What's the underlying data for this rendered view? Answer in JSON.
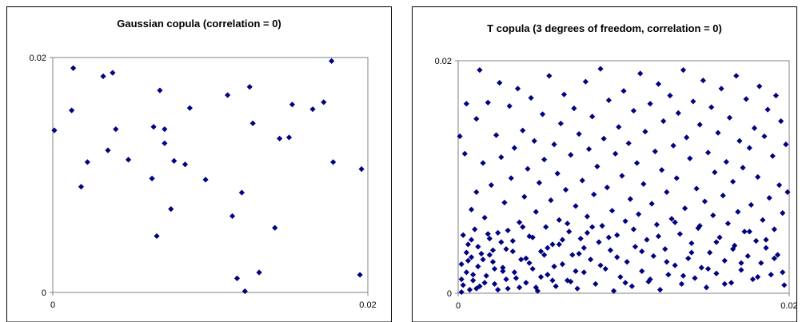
{
  "colors": {
    "marker": "#000080",
    "axis": "#808080",
    "frame": "#000000",
    "background": "#ffffff"
  },
  "chart_data": [
    {
      "type": "scatter",
      "title": "Gaussian copula (correlation = 0)",
      "xlabel": "",
      "ylabel": "",
      "xlim": [
        0,
        0.02
      ],
      "ylim": [
        0,
        0.02
      ],
      "x_ticks": [
        "0",
        "0.02"
      ],
      "y_ticks": [
        "0",
        "0.02"
      ],
      "grid": false,
      "points": [
        [
          0.0001,
          0.0138
        ],
        [
          0.0012,
          0.0155
        ],
        [
          0.0013,
          0.0191
        ],
        [
          0.0018,
          0.009
        ],
        [
          0.0022,
          0.0111
        ],
        [
          0.0032,
          0.0184
        ],
        [
          0.0035,
          0.0121
        ],
        [
          0.0038,
          0.0187
        ],
        [
          0.004,
          0.0139
        ],
        [
          0.0048,
          0.0113
        ],
        [
          0.0063,
          0.0097
        ],
        [
          0.0064,
          0.0141
        ],
        [
          0.0066,
          0.0048
        ],
        [
          0.0068,
          0.0172
        ],
        [
          0.0071,
          0.0139
        ],
        [
          0.0071,
          0.0127
        ],
        [
          0.0075,
          0.0071
        ],
        [
          0.0077,
          0.0112
        ],
        [
          0.0084,
          0.0109
        ],
        [
          0.0087,
          0.0157
        ],
        [
          0.0097,
          0.0096
        ],
        [
          0.0111,
          0.0168
        ],
        [
          0.0114,
          0.0065
        ],
        [
          0.0117,
          0.0012
        ],
        [
          0.012,
          0.0085
        ],
        [
          0.0122,
          0.0001
        ],
        [
          0.0125,
          0.0175
        ],
        [
          0.0127,
          0.0144
        ],
        [
          0.0131,
          0.0017
        ],
        [
          0.0141,
          0.0055
        ],
        [
          0.0144,
          0.0131
        ],
        [
          0.015,
          0.0132
        ],
        [
          0.0152,
          0.016
        ],
        [
          0.0165,
          0.0156
        ],
        [
          0.0172,
          0.0162
        ],
        [
          0.0177,
          0.0197
        ],
        [
          0.0178,
          0.0111
        ],
        [
          0.0195,
          0.0015
        ],
        [
          0.0196,
          0.0105
        ]
      ]
    },
    {
      "type": "scatter",
      "title": "T copula (3 degrees of freedom, correlation = 0)",
      "xlabel": "",
      "ylabel": "",
      "xlim": [
        0,
        0.02
      ],
      "ylim": [
        0,
        0.02
      ],
      "x_ticks": [
        "0",
        "0.02"
      ],
      "y_ticks": [
        "0",
        "0.02"
      ],
      "grid": false,
      "points": [
        [
          0.0001,
          0.0135
        ],
        [
          0.0002,
          0.0001
        ],
        [
          0.0002,
          0.0025
        ],
        [
          0.0003,
          0.0007
        ],
        [
          0.0004,
          0.012
        ],
        [
          0.0005,
          0.0163
        ],
        [
          0.0005,
          0.0018
        ],
        [
          0.0006,
          0.0042
        ],
        [
          0.0007,
          0.0003
        ],
        [
          0.0008,
          0.0072
        ],
        [
          0.0008,
          0.0031
        ],
        [
          0.0009,
          0.0011
        ],
        [
          0.001,
          0.0055
        ],
        [
          0.0011,
          0.015
        ],
        [
          0.0011,
          0.0087
        ],
        [
          0.0012,
          0.0023
        ],
        [
          0.0013,
          0.0192
        ],
        [
          0.0013,
          0.0006
        ],
        [
          0.0014,
          0.0034
        ],
        [
          0.0015,
          0.0112
        ],
        [
          0.0016,
          0.0065
        ],
        [
          0.0017,
          0.0015
        ],
        [
          0.0018,
          0.0164
        ],
        [
          0.0019,
          0.0047
        ],
        [
          0.002,
          0.0093
        ],
        [
          0.0021,
          0.0027
        ],
        [
          0.0022,
          0.0008
        ],
        [
          0.0023,
          0.0136
        ],
        [
          0.0024,
          0.0052
        ],
        [
          0.0025,
          0.0181
        ],
        [
          0.0026,
          0.0117
        ],
        [
          0.0027,
          0.0019
        ],
        [
          0.0028,
          0.0078
        ],
        [
          0.0029,
          0.0038
        ],
        [
          0.003,
          0.0004
        ],
        [
          0.0031,
          0.0161
        ],
        [
          0.0032,
          0.0099
        ],
        [
          0.0033,
          0.0045
        ],
        [
          0.0034,
          0.0125
        ],
        [
          0.0035,
          0.0013
        ],
        [
          0.0036,
          0.0176
        ],
        [
          0.0037,
          0.0061
        ],
        [
          0.0038,
          0.0029
        ],
        [
          0.0039,
          0.014
        ],
        [
          0.004,
          0.0083
        ],
        [
          0.0041,
          0.0009
        ],
        [
          0.0042,
          0.0107
        ],
        [
          0.0043,
          0.0049
        ],
        [
          0.0044,
          0.0168
        ],
        [
          0.0045,
          0.0021
        ],
        [
          0.0046,
          0.0131
        ],
        [
          0.0047,
          0.007
        ],
        [
          0.0048,
          0.0002
        ],
        [
          0.0049,
          0.0095
        ],
        [
          0.005,
          0.0036
        ],
        [
          0.0051,
          0.0154
        ],
        [
          0.0052,
          0.0115
        ],
        [
          0.0053,
          0.0057
        ],
        [
          0.0054,
          0.0016
        ],
        [
          0.0055,
          0.0187
        ],
        [
          0.0056,
          0.008
        ],
        [
          0.0057,
          0.0042
        ],
        [
          0.0058,
          0.0128
        ],
        [
          0.0059,
          0.0006
        ],
        [
          0.006,
          0.0103
        ],
        [
          0.0061,
          0.0063
        ],
        [
          0.0062,
          0.0146
        ],
        [
          0.0063,
          0.0025
        ],
        [
          0.0064,
          0.0171
        ],
        [
          0.0065,
          0.0089
        ],
        [
          0.0066,
          0.0011
        ],
        [
          0.0067,
          0.0053
        ],
        [
          0.0068,
          0.0119
        ],
        [
          0.0069,
          0.0033
        ],
        [
          0.007,
          0.0159
        ],
        [
          0.0071,
          0.0075
        ],
        [
          0.0072,
          0.0004
        ],
        [
          0.0073,
          0.0137
        ],
        [
          0.0074,
          0.0047
        ],
        [
          0.0075,
          0.0097
        ],
        [
          0.0076,
          0.0018
        ],
        [
          0.0077,
          0.0182
        ],
        [
          0.0078,
          0.0066
        ],
        [
          0.0079,
          0.0124
        ],
        [
          0.008,
          0.0029
        ],
        [
          0.0081,
          0.0152
        ],
        [
          0.0082,
          0.0085
        ],
        [
          0.0083,
          0.0008
        ],
        [
          0.0084,
          0.0109
        ],
        [
          0.0085,
          0.0044
        ],
        [
          0.0086,
          0.0193
        ],
        [
          0.0087,
          0.0058
        ],
        [
          0.0088,
          0.0133
        ],
        [
          0.0089,
          0.0021
        ],
        [
          0.009,
          0.0091
        ],
        [
          0.0091,
          0.0166
        ],
        [
          0.0092,
          0.0037
        ],
        [
          0.0093,
          0.0071
        ],
        [
          0.0094,
          0.0002
        ],
        [
          0.0095,
          0.012
        ],
        [
          0.0096,
          0.005
        ],
        [
          0.0097,
          0.0143
        ],
        [
          0.0098,
          0.0014
        ],
        [
          0.0099,
          0.0101
        ],
        [
          0.01,
          0.0174
        ],
        [
          0.0101,
          0.0062
        ],
        [
          0.0102,
          0.0027
        ],
        [
          0.0103,
          0.0129
        ],
        [
          0.0104,
          0.0081
        ],
        [
          0.0105,
          0.0006
        ],
        [
          0.0106,
          0.0157
        ],
        [
          0.0107,
          0.004
        ],
        [
          0.0108,
          0.0112
        ],
        [
          0.0109,
          0.0068
        ],
        [
          0.011,
          0.0189
        ],
        [
          0.0111,
          0.0019
        ],
        [
          0.0112,
          0.0094
        ],
        [
          0.0113,
          0.0139
        ],
        [
          0.0114,
          0.0046
        ],
        [
          0.0115,
          0.001
        ],
        [
          0.0116,
          0.0163
        ],
        [
          0.0117,
          0.0077
        ],
        [
          0.0118,
          0.0032
        ],
        [
          0.0119,
          0.0122
        ],
        [
          0.012,
          0.0059
        ],
        [
          0.0121,
          0.018
        ],
        [
          0.0122,
          0.0003
        ],
        [
          0.0123,
          0.0106
        ],
        [
          0.0124,
          0.0148
        ],
        [
          0.0125,
          0.0038
        ],
        [
          0.0126,
          0.0087
        ],
        [
          0.0127,
          0.0016
        ],
        [
          0.0128,
          0.017
        ],
        [
          0.0129,
          0.0064
        ],
        [
          0.013,
          0.0127
        ],
        [
          0.0131,
          0.0024
        ],
        [
          0.0132,
          0.0099
        ],
        [
          0.0133,
          0.0155
        ],
        [
          0.0134,
          0.0051
        ],
        [
          0.0135,
          0.0008
        ],
        [
          0.0136,
          0.0192
        ],
        [
          0.0137,
          0.0073
        ],
        [
          0.0138,
          0.0134
        ],
        [
          0.0139,
          0.003
        ],
        [
          0.014,
          0.0116
        ],
        [
          0.0141,
          0.0043
        ],
        [
          0.0142,
          0.0165
        ],
        [
          0.0143,
          0.0013
        ],
        [
          0.0144,
          0.009
        ],
        [
          0.0145,
          0.0056
        ],
        [
          0.0146,
          0.0145
        ],
        [
          0.0147,
          0.0022
        ],
        [
          0.0148,
          0.0183
        ],
        [
          0.0149,
          0.0079
        ],
        [
          0.015,
          0.0005
        ],
        [
          0.0151,
          0.0121
        ],
        [
          0.0152,
          0.0035
        ],
        [
          0.0153,
          0.016
        ],
        [
          0.0154,
          0.0067
        ],
        [
          0.0155,
          0.0104
        ],
        [
          0.0156,
          0.0017
        ],
        [
          0.0157,
          0.0138
        ],
        [
          0.0158,
          0.0048
        ],
        [
          0.0159,
          0.0176
        ],
        [
          0.016,
          0.0084
        ],
        [
          0.0161,
          0.0028
        ],
        [
          0.0162,
          0.0113
        ],
        [
          0.0163,
          0.006
        ],
        [
          0.0164,
          0.0151
        ],
        [
          0.0165,
          0.0009
        ],
        [
          0.0166,
          0.0096
        ],
        [
          0.0167,
          0.0041
        ],
        [
          0.0168,
          0.0187
        ],
        [
          0.0169,
          0.007
        ],
        [
          0.017,
          0.0131
        ],
        [
          0.0171,
          0.002
        ],
        [
          0.0172,
          0.0108
        ],
        [
          0.0173,
          0.0053
        ],
        [
          0.0174,
          0.0167
        ],
        [
          0.0175,
          0.0032
        ],
        [
          0.0176,
          0.0125
        ],
        [
          0.0177,
          0.0076
        ],
        [
          0.0178,
          0.0012
        ],
        [
          0.0179,
          0.0142
        ],
        [
          0.018,
          0.0045
        ],
        [
          0.0181,
          0.01
        ],
        [
          0.0182,
          0.0178
        ],
        [
          0.0183,
          0.0026
        ],
        [
          0.0184,
          0.0063
        ],
        [
          0.0185,
          0.0135
        ],
        [
          0.0186,
          0.0039
        ],
        [
          0.0187,
          0.0158
        ],
        [
          0.0188,
          0.0082
        ],
        [
          0.0189,
          0.0016
        ],
        [
          0.019,
          0.0118
        ],
        [
          0.0191,
          0.0055
        ],
        [
          0.0192,
          0.017
        ],
        [
          0.0193,
          0.0033
        ],
        [
          0.0194,
          0.0093
        ],
        [
          0.0195,
          0.0148
        ],
        [
          0.0196,
          0.0069
        ],
        [
          0.0197,
          0.0007
        ],
        [
          0.0198,
          0.0128
        ],
        [
          0.0199,
          0.0087
        ],
        [
          0.0003,
          0.005
        ],
        [
          0.0006,
          0.0028
        ],
        [
          0.0009,
          0.0016
        ],
        [
          0.0012,
          0.004
        ],
        [
          0.0016,
          0.0009
        ],
        [
          0.0019,
          0.0033
        ],
        [
          0.0022,
          0.0021
        ],
        [
          0.0026,
          0.0044
        ],
        [
          0.0029,
          0.0012
        ],
        [
          0.0033,
          0.0036
        ],
        [
          0.0037,
          0.0005
        ],
        [
          0.0041,
          0.003
        ],
        [
          0.0045,
          0.0048
        ],
        [
          0.005,
          0.0014
        ],
        [
          0.0054,
          0.0039
        ],
        [
          0.0058,
          0.0023
        ],
        [
          0.0063,
          0.0046
        ],
        [
          0.0068,
          0.001
        ],
        [
          0.0073,
          0.0034
        ],
        [
          0.0078,
          0.0052
        ],
        [
          0.0002,
          0.0012
        ],
        [
          0.0005,
          0.0035
        ],
        [
          0.0008,
          0.0046
        ],
        [
          0.0011,
          0.0004
        ],
        [
          0.0015,
          0.0029
        ],
        [
          0.0018,
          0.0051
        ],
        [
          0.0021,
          0.0037
        ],
        [
          0.0024,
          0.0003
        ],
        [
          0.0027,
          0.0022
        ],
        [
          0.003,
          0.0054
        ],
        [
          0.0034,
          0.0018
        ],
        [
          0.0039,
          0.0057
        ],
        [
          0.0043,
          0.0026
        ],
        [
          0.0047,
          0.0005
        ],
        [
          0.0052,
          0.0033
        ],
        [
          0.0057,
          0.0011
        ],
        [
          0.0061,
          0.0042
        ],
        [
          0.0066,
          0.006
        ],
        [
          0.0071,
          0.0019
        ],
        [
          0.0076,
          0.0039
        ],
        [
          0.0081,
          0.0057
        ],
        [
          0.0086,
          0.0024
        ],
        [
          0.0091,
          0.0048
        ],
        [
          0.0096,
          0.0031
        ],
        [
          0.0101,
          0.0009
        ],
        [
          0.0106,
          0.0055
        ],
        [
          0.0111,
          0.0036
        ],
        [
          0.0116,
          0.0012
        ],
        [
          0.0121,
          0.0049
        ],
        [
          0.0126,
          0.0027
        ],
        [
          0.0131,
          0.0061
        ],
        [
          0.0136,
          0.0015
        ],
        [
          0.0141,
          0.0035
        ],
        [
          0.0146,
          0.0058
        ],
        [
          0.0151,
          0.0021
        ],
        [
          0.0156,
          0.0044
        ],
        [
          0.0161,
          0.0008
        ],
        [
          0.0166,
          0.0038
        ],
        [
          0.0171,
          0.0026
        ],
        [
          0.0176,
          0.0053
        ],
        [
          0.0181,
          0.0014
        ],
        [
          0.0186,
          0.0046
        ],
        [
          0.0191,
          0.003
        ],
        [
          0.0196,
          0.0018
        ]
      ]
    }
  ]
}
